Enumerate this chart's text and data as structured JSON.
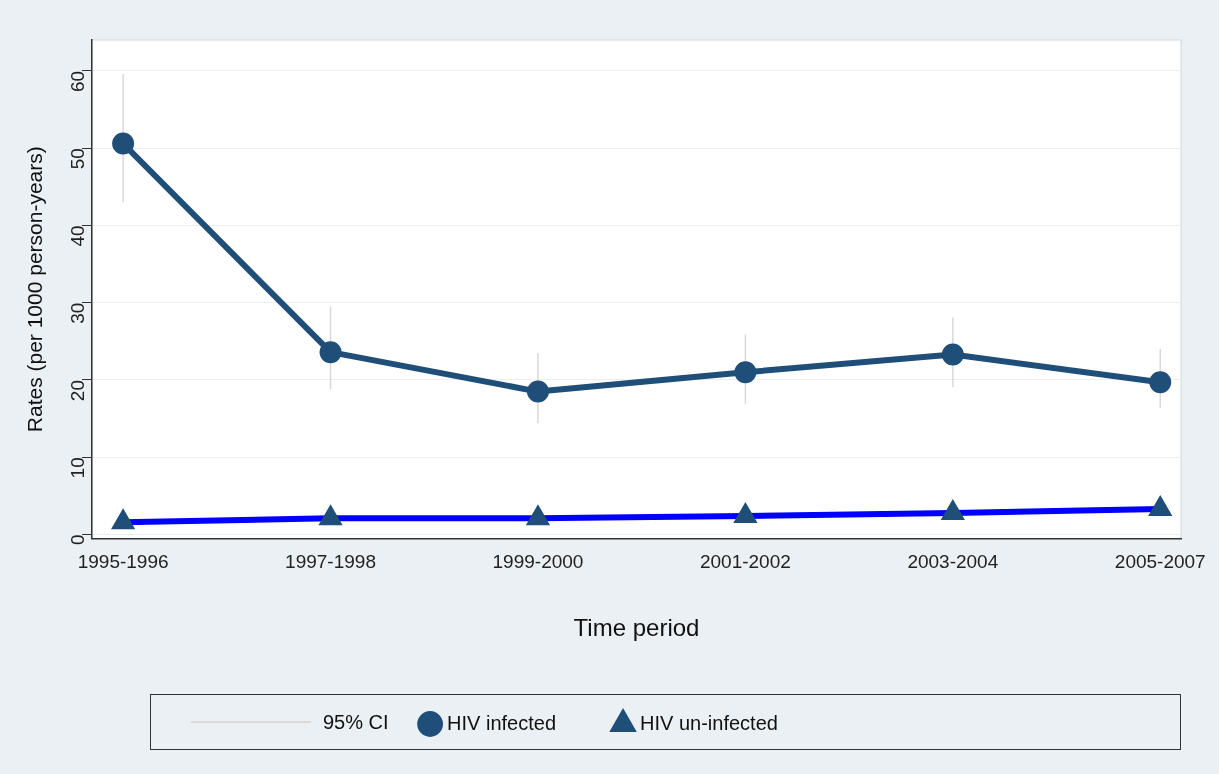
{
  "chart_data": {
    "type": "line",
    "xlabel": "Time period",
    "ylabel": "Rates (per 1000 person-years)",
    "categories": [
      "1995-1996",
      "1997-1998",
      "1999-2000",
      "2001-2002",
      "2003-2004",
      "2005-2007"
    ],
    "series": [
      {
        "name": "HIV infected",
        "color": "#1f4e79",
        "marker": "circle",
        "values": [
          50.6,
          23.6,
          18.5,
          21.0,
          23.3,
          19.7
        ],
        "errors": [
          [
            43.0,
            59.6
          ],
          [
            18.8,
            29.5
          ],
          [
            14.4,
            23.5
          ],
          [
            16.9,
            25.9
          ],
          [
            19.1,
            28.1
          ],
          [
            16.4,
            24.0
          ]
        ]
      },
      {
        "name": "HIV un-infected",
        "color": "#0000ff",
        "marker": "triangle",
        "values": [
          1.6,
          2.1,
          2.1,
          2.4,
          2.8,
          3.3
        ]
      }
    ],
    "ylim": [
      -0.5,
      64
    ],
    "yticks": [
      0,
      10,
      20,
      30,
      40,
      50,
      60
    ],
    "grid": "y",
    "legend": "bottom",
    "line_style": "solid",
    "annotations": [
      "95% CI"
    ]
  }
}
